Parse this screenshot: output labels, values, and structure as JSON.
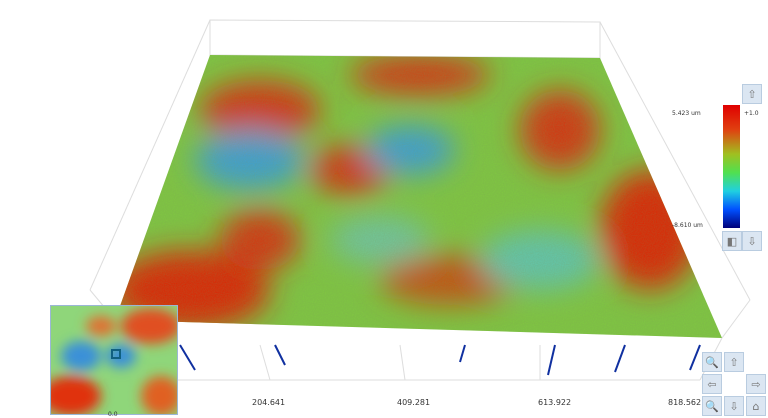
{
  "chart_data": {
    "type": "heatmap",
    "subtype": "3d-surface",
    "x_ticks": [
      "204.641",
      "409.281",
      "613.922",
      "818.562"
    ],
    "colorbar": {
      "max_label": "5.423 um",
      "min_label": "-8.610 um",
      "scale_label": "+1.0",
      "colors": [
        "#00007a",
        "#0050ff",
        "#20d0e0",
        "#50e050",
        "#a0c020",
        "#e04010",
        "#e00000"
      ]
    },
    "minimap_label": "0.0"
  },
  "icons": [
    "zoom-in-icon",
    "arrow-up-icon",
    "arrow-left-icon",
    "arrow-right-icon",
    "arrow-down-icon",
    "zoom-out-icon",
    "home-icon",
    "colorbar-up-icon",
    "colorbar-down-icon",
    "colorbar-reset-icon"
  ]
}
